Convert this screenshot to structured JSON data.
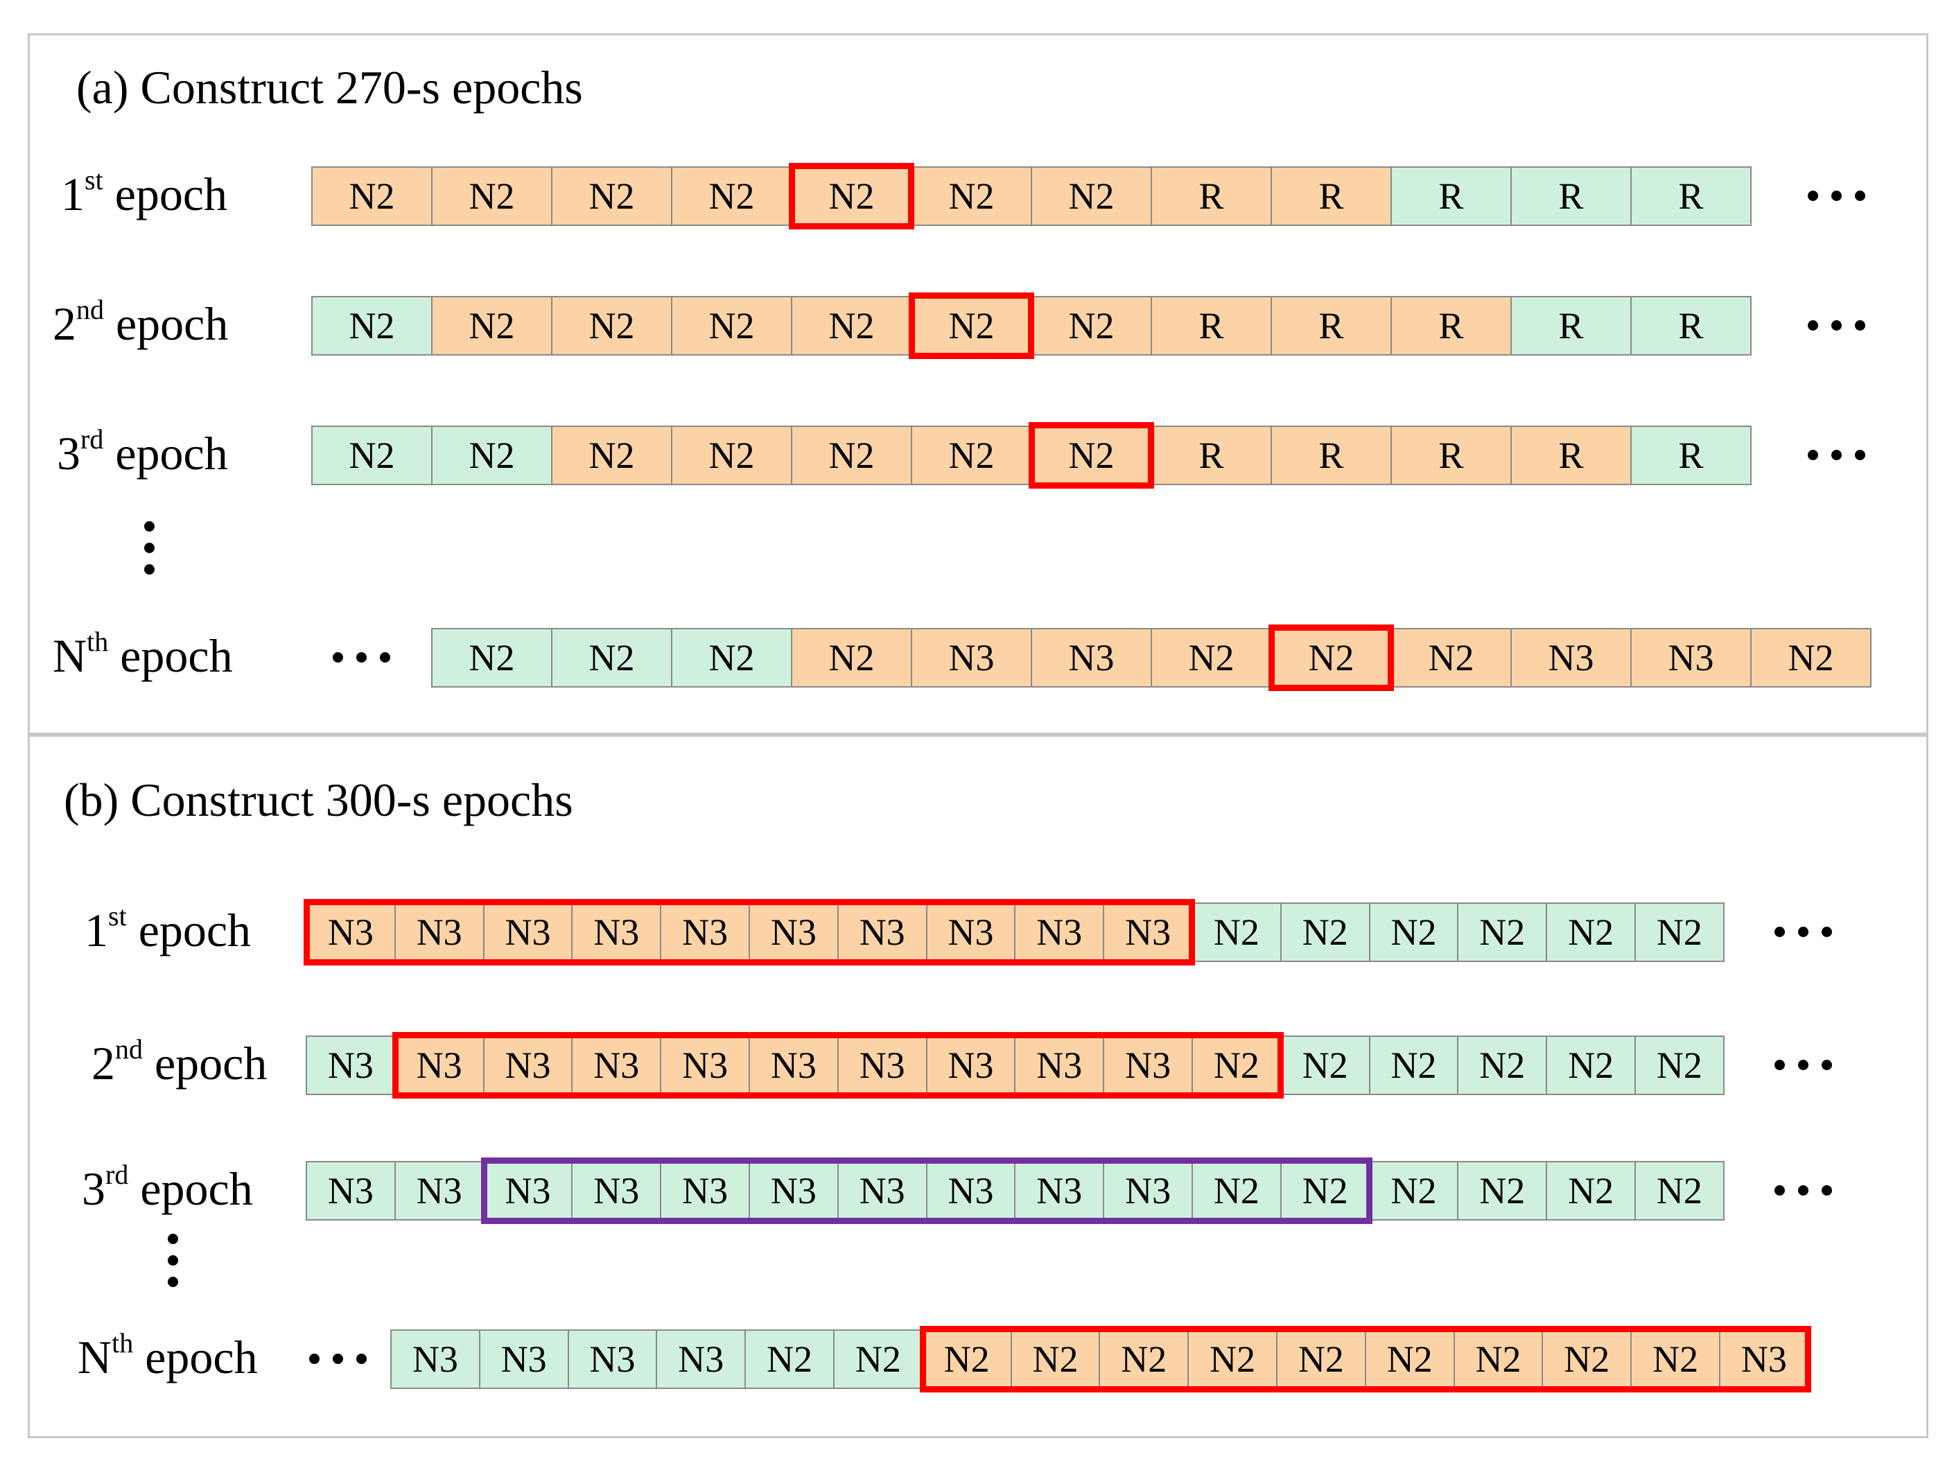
{
  "colors": {
    "orange_cell": "#fbd3a6",
    "green_cell": "#d0f0de",
    "red_box": "#ff0000",
    "purple_box": "#7030a0",
    "cell_border": "#8a8a8a",
    "panel_border": "#c8c8c8"
  },
  "panels": [
    {
      "title": "(a) Construct 270-s epochs",
      "rows": [
        {
          "label_num": "1",
          "label_sup": "st",
          "label_word": "epoch",
          "leading_dots": false,
          "trailing_dots": true,
          "cells": [
            {
              "text": "N2",
              "color": "orange"
            },
            {
              "text": "N2",
              "color": "orange"
            },
            {
              "text": "N2",
              "color": "orange"
            },
            {
              "text": "N2",
              "color": "orange"
            },
            {
              "text": "N2",
              "color": "orange"
            },
            {
              "text": "N2",
              "color": "orange"
            },
            {
              "text": "N2",
              "color": "orange"
            },
            {
              "text": "R",
              "color": "orange"
            },
            {
              "text": "R",
              "color": "orange"
            },
            {
              "text": "R",
              "color": "green"
            },
            {
              "text": "R",
              "color": "green"
            },
            {
              "text": "R",
              "color": "green"
            }
          ],
          "highlight": {
            "from": 4,
            "to": 4,
            "color": "red"
          }
        },
        {
          "label_num": "2",
          "label_sup": "nd",
          "label_word": "epoch",
          "leading_dots": false,
          "trailing_dots": true,
          "cells": [
            {
              "text": "N2",
              "color": "green"
            },
            {
              "text": "N2",
              "color": "orange"
            },
            {
              "text": "N2",
              "color": "orange"
            },
            {
              "text": "N2",
              "color": "orange"
            },
            {
              "text": "N2",
              "color": "orange"
            },
            {
              "text": "N2",
              "color": "orange"
            },
            {
              "text": "N2",
              "color": "orange"
            },
            {
              "text": "R",
              "color": "orange"
            },
            {
              "text": "R",
              "color": "orange"
            },
            {
              "text": "R",
              "color": "orange"
            },
            {
              "text": "R",
              "color": "green"
            },
            {
              "text": "R",
              "color": "green"
            }
          ],
          "highlight": {
            "from": 5,
            "to": 5,
            "color": "red"
          }
        },
        {
          "label_num": "3",
          "label_sup": "rd",
          "label_word": "epoch",
          "leading_dots": false,
          "trailing_dots": true,
          "cells": [
            {
              "text": "N2",
              "color": "green"
            },
            {
              "text": "N2",
              "color": "green"
            },
            {
              "text": "N2",
              "color": "orange"
            },
            {
              "text": "N2",
              "color": "orange"
            },
            {
              "text": "N2",
              "color": "orange"
            },
            {
              "text": "N2",
              "color": "orange"
            },
            {
              "text": "N2",
              "color": "orange"
            },
            {
              "text": "R",
              "color": "orange"
            },
            {
              "text": "R",
              "color": "orange"
            },
            {
              "text": "R",
              "color": "orange"
            },
            {
              "text": "R",
              "color": "orange"
            },
            {
              "text": "R",
              "color": "green"
            }
          ],
          "highlight": {
            "from": 6,
            "to": 6,
            "color": "red"
          }
        },
        {
          "label_num": "N",
          "label_sup": "th",
          "label_word": "epoch",
          "leading_dots": true,
          "trailing_dots": false,
          "cells": [
            {
              "text": "N2",
              "color": "green"
            },
            {
              "text": "N2",
              "color": "green"
            },
            {
              "text": "N2",
              "color": "green"
            },
            {
              "text": "N2",
              "color": "orange"
            },
            {
              "text": "N3",
              "color": "orange"
            },
            {
              "text": "N3",
              "color": "orange"
            },
            {
              "text": "N2",
              "color": "orange"
            },
            {
              "text": "N2",
              "color": "orange"
            },
            {
              "text": "N2",
              "color": "orange"
            },
            {
              "text": "N3",
              "color": "orange"
            },
            {
              "text": "N3",
              "color": "orange"
            },
            {
              "text": "N2",
              "color": "orange"
            }
          ],
          "highlight": {
            "from": 7,
            "to": 7,
            "color": "red"
          }
        }
      ]
    },
    {
      "title": "(b) Construct 300-s epochs",
      "rows": [
        {
          "label_num": "1",
          "label_sup": "st",
          "label_word": "epoch",
          "leading_dots": false,
          "trailing_dots": true,
          "cells": [
            {
              "text": "N3",
              "color": "orange"
            },
            {
              "text": "N3",
              "color": "orange"
            },
            {
              "text": "N3",
              "color": "orange"
            },
            {
              "text": "N3",
              "color": "orange"
            },
            {
              "text": "N3",
              "color": "orange"
            },
            {
              "text": "N3",
              "color": "orange"
            },
            {
              "text": "N3",
              "color": "orange"
            },
            {
              "text": "N3",
              "color": "orange"
            },
            {
              "text": "N3",
              "color": "orange"
            },
            {
              "text": "N3",
              "color": "orange"
            },
            {
              "text": "N2",
              "color": "green"
            },
            {
              "text": "N2",
              "color": "green"
            },
            {
              "text": "N2",
              "color": "green"
            },
            {
              "text": "N2",
              "color": "green"
            },
            {
              "text": "N2",
              "color": "green"
            },
            {
              "text": "N2",
              "color": "green"
            }
          ],
          "highlight": {
            "from": 0,
            "to": 9,
            "color": "red"
          }
        },
        {
          "label_num": "2",
          "label_sup": "nd",
          "label_word": "epoch",
          "leading_dots": false,
          "trailing_dots": true,
          "cells": [
            {
              "text": "N3",
              "color": "green"
            },
            {
              "text": "N3",
              "color": "orange"
            },
            {
              "text": "N3",
              "color": "orange"
            },
            {
              "text": "N3",
              "color": "orange"
            },
            {
              "text": "N3",
              "color": "orange"
            },
            {
              "text": "N3",
              "color": "orange"
            },
            {
              "text": "N3",
              "color": "orange"
            },
            {
              "text": "N3",
              "color": "orange"
            },
            {
              "text": "N3",
              "color": "orange"
            },
            {
              "text": "N3",
              "color": "orange"
            },
            {
              "text": "N2",
              "color": "orange"
            },
            {
              "text": "N2",
              "color": "green"
            },
            {
              "text": "N2",
              "color": "green"
            },
            {
              "text": "N2",
              "color": "green"
            },
            {
              "text": "N2",
              "color": "green"
            },
            {
              "text": "N2",
              "color": "green"
            }
          ],
          "highlight": {
            "from": 1,
            "to": 10,
            "color": "red"
          }
        },
        {
          "label_num": "3",
          "label_sup": "rd",
          "label_word": "epoch",
          "leading_dots": false,
          "trailing_dots": true,
          "cells": [
            {
              "text": "N3",
              "color": "green"
            },
            {
              "text": "N3",
              "color": "green"
            },
            {
              "text": "N3",
              "color": "green"
            },
            {
              "text": "N3",
              "color": "green"
            },
            {
              "text": "N3",
              "color": "green"
            },
            {
              "text": "N3",
              "color": "green"
            },
            {
              "text": "N3",
              "color": "green"
            },
            {
              "text": "N3",
              "color": "green"
            },
            {
              "text": "N3",
              "color": "green"
            },
            {
              "text": "N3",
              "color": "green"
            },
            {
              "text": "N2",
              "color": "green"
            },
            {
              "text": "N2",
              "color": "green"
            },
            {
              "text": "N2",
              "color": "green"
            },
            {
              "text": "N2",
              "color": "green"
            },
            {
              "text": "N2",
              "color": "green"
            },
            {
              "text": "N2",
              "color": "green"
            }
          ],
          "highlight": {
            "from": 2,
            "to": 11,
            "color": "purple"
          }
        },
        {
          "label_num": "N",
          "label_sup": "th",
          "label_word": "epoch",
          "leading_dots": true,
          "trailing_dots": false,
          "cells": [
            {
              "text": "N3",
              "color": "green"
            },
            {
              "text": "N3",
              "color": "green"
            },
            {
              "text": "N3",
              "color": "green"
            },
            {
              "text": "N3",
              "color": "green"
            },
            {
              "text": "N2",
              "color": "green"
            },
            {
              "text": "N2",
              "color": "green"
            },
            {
              "text": "N2",
              "color": "orange"
            },
            {
              "text": "N2",
              "color": "orange"
            },
            {
              "text": "N2",
              "color": "orange"
            },
            {
              "text": "N2",
              "color": "orange"
            },
            {
              "text": "N2",
              "color": "orange"
            },
            {
              "text": "N2",
              "color": "orange"
            },
            {
              "text": "N2",
              "color": "orange"
            },
            {
              "text": "N2",
              "color": "orange"
            },
            {
              "text": "N2",
              "color": "orange"
            },
            {
              "text": "N3",
              "color": "orange"
            }
          ],
          "highlight": {
            "from": 6,
            "to": 15,
            "color": "red"
          }
        }
      ]
    }
  ]
}
